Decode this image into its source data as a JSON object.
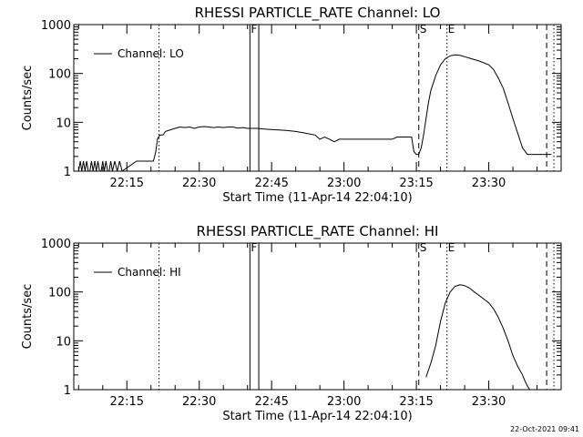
{
  "footer_timestamp": "22-Oct-2021 09:41",
  "chart_data": [
    {
      "type": "line",
      "title": "RHESSI PARTICLE_RATE Channel: LO",
      "xlabel": "Start Time (11-Apr-14 22:04:10)",
      "ylabel": "Counts/sec",
      "y_scale": "log",
      "ylim": [
        1,
        1000
      ],
      "xlim": [
        "22:04",
        "23:45"
      ],
      "x_ticks": [
        "22:15",
        "22:30",
        "22:45",
        "23:00",
        "23:15",
        "23:30"
      ],
      "y_ticks": [
        "1",
        "10",
        "100",
        "1000"
      ],
      "legend": {
        "placement": "top-left",
        "label": "Channel: LO"
      },
      "markers": [
        {
          "label": "F",
          "times": [
            "22:40:30",
            "22:42:20"
          ],
          "style": "solid"
        },
        {
          "label": "S",
          "time": "23:15:30",
          "style": "dashed"
        },
        {
          "label": "E",
          "time": "23:21:20",
          "style": "dotted"
        }
      ],
      "extra_lines": [
        {
          "time": "22:21:40",
          "style": "dotted"
        },
        {
          "time": "23:42:00",
          "style": "dashed"
        },
        {
          "time": "23:43:30",
          "style": "dotted"
        }
      ],
      "series": [
        {
          "x": [
            "22:05:00",
            "22:05:20",
            "22:05:40",
            "22:06:00",
            "22:06:20",
            "22:06:40",
            "22:07:00",
            "22:07:20",
            "22:07:40",
            "22:08:00",
            "22:08:20",
            "22:08:40",
            "22:09:00",
            "22:09:20",
            "22:09:40",
            "22:10:00",
            "22:10:20",
            "22:10:40",
            "22:11:00",
            "22:11:20",
            "22:11:40",
            "22:12:00",
            "22:12:30",
            "22:13:00",
            "22:13:30",
            "22:14:00",
            "22:17:00",
            "22:20:30",
            "22:21:00",
            "22:21:20",
            "22:21:50",
            "22:22:30",
            "22:23:00",
            "22:24:00",
            "22:25:00",
            "22:26:00",
            "22:27:00",
            "22:28:00",
            "22:29:00",
            "22:30:00",
            "22:31:00",
            "22:32:00",
            "22:33:00",
            "22:34:00",
            "22:35:00",
            "22:36:00",
            "22:37:00",
            "22:38:00",
            "22:39:00",
            "22:40:00",
            "22:42:00",
            "22:44:00",
            "22:46:00",
            "22:48:00",
            "22:50:00",
            "22:52:00",
            "22:54:00",
            "22:55:00",
            "22:56:00",
            "22:57:00",
            "22:58:00",
            "22:59:00",
            "23:00:00",
            "23:02:00",
            "23:04:00",
            "23:05:00",
            "23:06:00",
            "23:08:00",
            "23:10:00",
            "23:11:00",
            "23:12:00",
            "23:13:00",
            "23:14:00",
            "23:14:30",
            "23:15:00",
            "23:15:30",
            "23:16:00",
            "23:16:30",
            "23:17:00",
            "23:17:30",
            "23:18:00",
            "23:19:00",
            "23:20:00",
            "23:21:00",
            "23:22:00",
            "23:23:00",
            "23:24:00",
            "23:25:00",
            "23:26:00",
            "23:28:00",
            "23:30:00",
            "23:31:00",
            "23:32:00",
            "23:33:00",
            "23:34:00",
            "23:35:00",
            "23:36:00",
            "23:37:00",
            "23:38:00",
            "23:39:00",
            "23:40:00",
            "23:41:00",
            "23:42:00",
            "23:43:00"
          ],
          "y": [
            1,
            1.6,
            1,
            1.6,
            1,
            1.6,
            1,
            1,
            1.6,
            1,
            1.6,
            1,
            1.6,
            1,
            1,
            1.6,
            1,
            1.6,
            1,
            1,
            1.6,
            1,
            1.6,
            1,
            1.6,
            1,
            1.6,
            1.6,
            2.5,
            4.5,
            5.5,
            5.5,
            6.5,
            7,
            7.5,
            8,
            7.8,
            8,
            7.5,
            8,
            8.2,
            8,
            7.8,
            8,
            7.8,
            8,
            8,
            7.6,
            7.8,
            7.5,
            7.5,
            7.2,
            7,
            6.8,
            6.5,
            6,
            5.5,
            4.5,
            5,
            4.5,
            4,
            4.5,
            4.5,
            4.5,
            4.5,
            4.5,
            4.5,
            4.5,
            4.5,
            5,
            5,
            5,
            5,
            2.5,
            2.2,
            2.2,
            3,
            5.5,
            12,
            25,
            45,
            90,
            150,
            200,
            230,
            240,
            235,
            220,
            205,
            180,
            150,
            120,
            80,
            50,
            25,
            12,
            6,
            3,
            2.2,
            2.2,
            2.2,
            2.2,
            2.2,
            2.2
          ]
        }
      ]
    },
    {
      "type": "line",
      "title": "RHESSI PARTICLE_RATE Channel: HI",
      "xlabel": "Start Time (11-Apr-14 22:04:10)",
      "ylabel": "Counts/sec",
      "y_scale": "log",
      "ylim": [
        1,
        1000
      ],
      "xlim": [
        "22:04",
        "23:45"
      ],
      "x_ticks": [
        "22:15",
        "22:30",
        "22:45",
        "23:00",
        "23:15",
        "23:30"
      ],
      "y_ticks": [
        "1",
        "10",
        "100",
        "1000"
      ],
      "legend": {
        "placement": "top-left",
        "label": "Channel: HI"
      },
      "markers": [
        {
          "label": "F",
          "times": [
            "22:40:30",
            "22:42:20"
          ],
          "style": "solid"
        },
        {
          "label": "S",
          "time": "23:15:30",
          "style": "dashed"
        },
        {
          "label": "E",
          "time": "23:21:20",
          "style": "dotted"
        }
      ],
      "extra_lines": [
        {
          "time": "22:21:40",
          "style": "dotted"
        },
        {
          "time": "23:42:00",
          "style": "dashed"
        },
        {
          "time": "23:43:30",
          "style": "dotted"
        }
      ],
      "series": [
        {
          "x": [
            "23:17:00",
            "23:17:30",
            "23:18:00",
            "23:19:00",
            "23:20:00",
            "23:21:00",
            "23:22:00",
            "23:23:00",
            "23:24:00",
            "23:25:00",
            "23:26:00",
            "23:27:00",
            "23:28:00",
            "23:30:00",
            "23:31:00",
            "23:32:00",
            "23:33:00",
            "23:34:00",
            "23:35:00",
            "23:36:00",
            "23:37:00",
            "23:37:30",
            "23:38:00",
            "23:38:30"
          ],
          "y": [
            1.8,
            2.5,
            3.5,
            8,
            25,
            60,
            100,
            130,
            140,
            135,
            120,
            100,
            85,
            60,
            45,
            30,
            18,
            10,
            5,
            3,
            2,
            1.5,
            1.2,
            1
          ]
        }
      ]
    }
  ]
}
